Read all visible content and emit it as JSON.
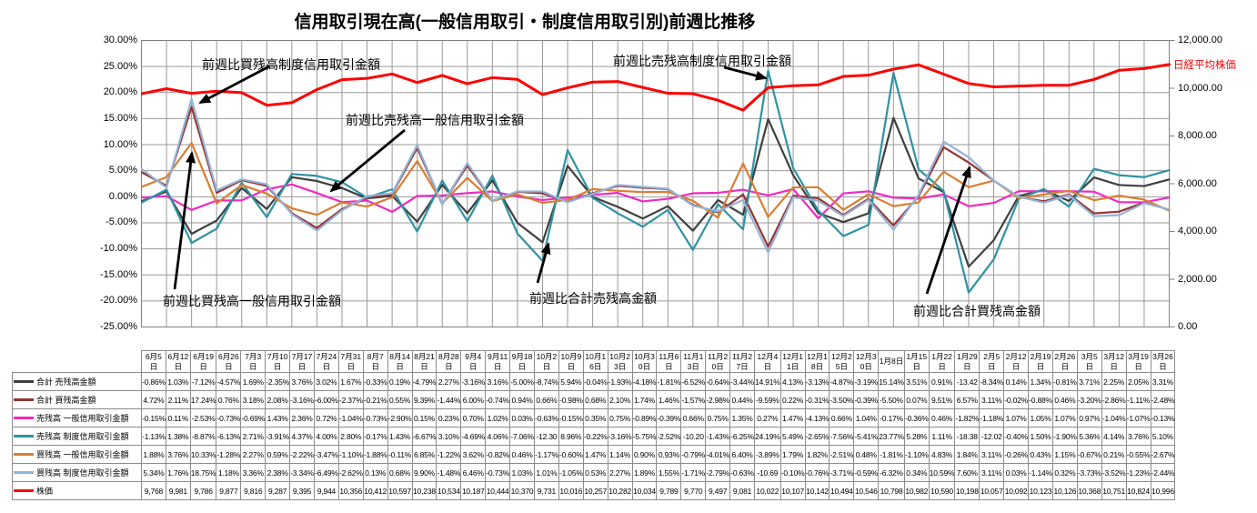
{
  "title": "信用取引現在高(一般信用取引・制度信用取引別)前週比推移",
  "right_axis_label": "日経平均株価",
  "axes": {
    "left_ticks": [
      "30.00%",
      "25.00%",
      "20.00%",
      "15.00%",
      "10.00%",
      "5.00%",
      "0.00%",
      "-5.00%",
      "-10.00%",
      "-15.00%",
      "-20.00%",
      "-25.00%"
    ],
    "right_ticks": [
      "12,000.00",
      "10,000.00",
      "8,000.00",
      "6,000.00",
      "4,000.00",
      "2,000.00",
      "0.00"
    ]
  },
  "annotations": [
    {
      "label": "前週比買残高制度信用取引金額"
    },
    {
      "label": "前週比売残高一般信用取引金額"
    },
    {
      "label": "前週比買残高一般信用取引金額"
    },
    {
      "label": "前週比売残高制度信用取引金額"
    },
    {
      "label": "前週比合計売残高金額"
    },
    {
      "label": "前週比合計買残高金額"
    }
  ],
  "chart_data": {
    "type": "line",
    "title": "信用取引現在高(一般信用取引・制度信用取引別)前週比推移",
    "grid": true,
    "x_labels": [
      "6月5日",
      "6月12日",
      "6月19日",
      "6月26日",
      "7月3日",
      "7月10日",
      "7月17日",
      "7月24日",
      "7月31日",
      "8月7日",
      "8月14日",
      "8月21日",
      "8月28日",
      "9月4日",
      "9月11日",
      "9月18日",
      "10月2日",
      "10月9日",
      "10月16日",
      "10月23日",
      "10月30日",
      "11月6日",
      "11月13日",
      "11月20日",
      "11月27日",
      "12月4日",
      "12月11日",
      "12月18日",
      "12月25日",
      "12月30日",
      "1月8日",
      "1月15日",
      "1月22日",
      "1月29日",
      "2月5日",
      "2月12日",
      "2月19日",
      "2月26日",
      "3月5日",
      "3月12日",
      "3月19日",
      "3月26日"
    ],
    "left_axis": {
      "min": -25,
      "max": 30,
      "step": 5,
      "format": "percent"
    },
    "right_axis": {
      "min": 0,
      "max": 12000,
      "step": 2000,
      "format": "number"
    },
    "series": [
      {
        "key": "total-sell",
        "name": "合計 売残高金額",
        "color": "#3F3F3F",
        "axis": "left",
        "format": "percent",
        "values": [
          -0.86,
          1.03,
          -7.12,
          -4.57,
          1.69,
          -2.35,
          3.76,
          3.02,
          1.67,
          -0.33,
          0.19,
          -4.79,
          2.27,
          -3.16,
          3.16,
          -5.0,
          -8.74,
          5.94,
          -0.04,
          -1.93,
          -4.18,
          -1.81,
          -6.52,
          -0.64,
          -3.44,
          14.91,
          4.13,
          -3.13,
          -4.87,
          -3.19,
          15.14,
          3.51,
          0.91,
          -13.42,
          -8.34,
          0.14,
          1.34,
          -0.81,
          3.71,
          2.25,
          2.05,
          3.31
        ]
      },
      {
        "key": "total-buy",
        "name": "合計 買残高金額",
        "color": "#943634",
        "axis": "left",
        "format": "percent",
        "values": [
          4.72,
          2.11,
          17.24,
          0.76,
          3.18,
          2.08,
          -3.16,
          -6.0,
          -2.37,
          -0.21,
          0.55,
          9.39,
          -1.44,
          6.0,
          -0.74,
          0.94,
          0.66,
          -0.98,
          0.68,
          2.1,
          1.74,
          1.46,
          -1.57,
          -2.98,
          0.44,
          -9.59,
          0.22,
          -0.31,
          -3.5,
          -0.39,
          -5.5,
          0.07,
          9.51,
          6.57,
          3.11,
          -0.02,
          -0.88,
          0.46,
          -3.2,
          -2.86,
          -1.11,
          -2.48
        ]
      },
      {
        "key": "sell-general",
        "name": "売残高 一般信用取引金額",
        "color": "#F02AC0",
        "axis": "left",
        "format": "percent",
        "values": [
          -0.15,
          0.11,
          -2.53,
          -0.73,
          -0.69,
          1.43,
          2.36,
          0.72,
          -1.04,
          -0.73,
          -2.9,
          0.15,
          0.23,
          0.7,
          1.02,
          0.03,
          -0.63,
          -0.15,
          0.35,
          0.75,
          -0.89,
          -0.39,
          0.66,
          0.75,
          1.35,
          0.27,
          1.47,
          -4.13,
          0.66,
          1.04,
          -0.17,
          -0.36,
          0.46,
          -1.82,
          -1.18,
          1.07,
          1.05,
          1.07,
          0.97,
          -1.04,
          -1.07,
          -0.13
        ]
      },
      {
        "key": "sell-system",
        "name": "売残高 制度信用取引金額",
        "color": "#2E93A3",
        "axis": "left",
        "format": "percent",
        "values": [
          -1.13,
          1.38,
          -8.87,
          -6.13,
          2.71,
          -3.91,
          4.37,
          4.0,
          2.8,
          -0.17,
          1.43,
          -6.67,
          3.1,
          -4.69,
          4.06,
          -7.06,
          -12.3,
          8.96,
          -0.22,
          -3.16,
          -5.75,
          -2.52,
          -10.2,
          -1.43,
          -6.25,
          24.19,
          5.49,
          -2.65,
          -7.56,
          -5.41,
          23.77,
          5.28,
          1.11,
          -18.38,
          -12.02,
          -0.4,
          1.5,
          -1.9,
          5.36,
          4.14,
          3.76,
          5.1
        ]
      },
      {
        "key": "buy-general",
        "name": "買残高 一般信用取引金額",
        "color": "#D97E32",
        "axis": "left",
        "format": "percent",
        "values": [
          1.88,
          3.76,
          10.33,
          -1.28,
          2.27,
          0.59,
          -2.22,
          -3.47,
          -1.1,
          -1.88,
          -0.11,
          6.85,
          -1.22,
          3.62,
          -0.82,
          0.46,
          -1.17,
          -0.6,
          1.47,
          1.14,
          0.9,
          0.93,
          -0.79,
          -4.01,
          6.4,
          -3.89,
          1.79,
          1.82,
          -2.51,
          0.48,
          -1.81,
          -1.1,
          4.83,
          1.84,
          3.11,
          -0.26,
          0.43,
          1.15,
          -0.67,
          0.21,
          -0.55,
          -2.67
        ]
      },
      {
        "key": "buy-system",
        "name": "買残高 制度信用取引金額",
        "color": "#95B3D7",
        "axis": "left",
        "format": "percent",
        "values": [
          5.34,
          1.76,
          18.75,
          1.18,
          3.36,
          2.38,
          -3.34,
          -6.49,
          -2.62,
          0.13,
          0.68,
          9.9,
          -1.48,
          6.46,
          -0.73,
          1.03,
          1.01,
          -1.05,
          0.53,
          2.27,
          1.89,
          1.55,
          -1.71,
          -2.79,
          -0.63,
          -10.69,
          -0.1,
          -0.76,
          -3.71,
          -0.59,
          -6.32,
          0.34,
          10.59,
          7.6,
          3.11,
          0.03,
          -1.14,
          0.32,
          -3.73,
          -3.52,
          -1.23,
          -2.44
        ]
      },
      {
        "key": "nikkei",
        "name": "株価",
        "color": "#FF0000",
        "axis": "right",
        "format": "number",
        "values": [
          9768,
          9981,
          9786,
          9877,
          9816,
          9287,
          9395,
          9944,
          10356,
          10412,
          10597,
          10238,
          10534,
          10187,
          10444,
          10370,
          9731,
          10016,
          10257,
          10282,
          10034,
          9789,
          9770,
          9497,
          9081,
          10022,
          10107,
          10142,
          10494,
          10546,
          10798,
          10982,
          10590,
          10198,
          10057,
          10092,
          10123,
          10126,
          10368,
          10751,
          10824,
          10996
        ]
      }
    ]
  }
}
